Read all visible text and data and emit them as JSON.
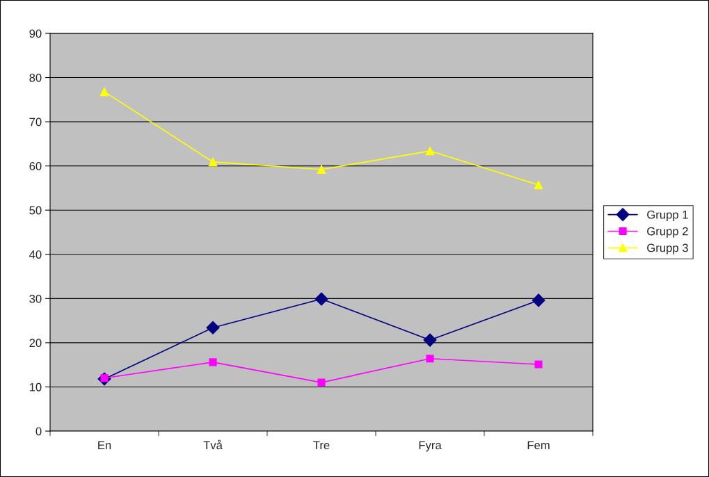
{
  "chart_data": {
    "type": "line",
    "categories": [
      "En",
      "Två",
      "Tre",
      "Fyra",
      "Fem"
    ],
    "series": [
      {
        "name": "Grupp 1",
        "color": "#000080",
        "marker": "diamond",
        "values": [
          11.8,
          23.4,
          29.9,
          20.6,
          29.6
        ]
      },
      {
        "name": "Grupp 2",
        "color": "#ff00ff",
        "marker": "square",
        "values": [
          12.0,
          15.6,
          11.0,
          16.4,
          15.1
        ]
      },
      {
        "name": "Grupp 3",
        "color": "#ffff00",
        "marker": "triangle",
        "values": [
          76.8,
          60.9,
          59.2,
          63.4,
          55.7
        ]
      }
    ],
    "ylim": [
      0,
      90
    ],
    "yticks": [
      0,
      10,
      20,
      30,
      40,
      50,
      60,
      70,
      80,
      90
    ],
    "grid": "y",
    "legend": "right",
    "line_style": "solid"
  }
}
